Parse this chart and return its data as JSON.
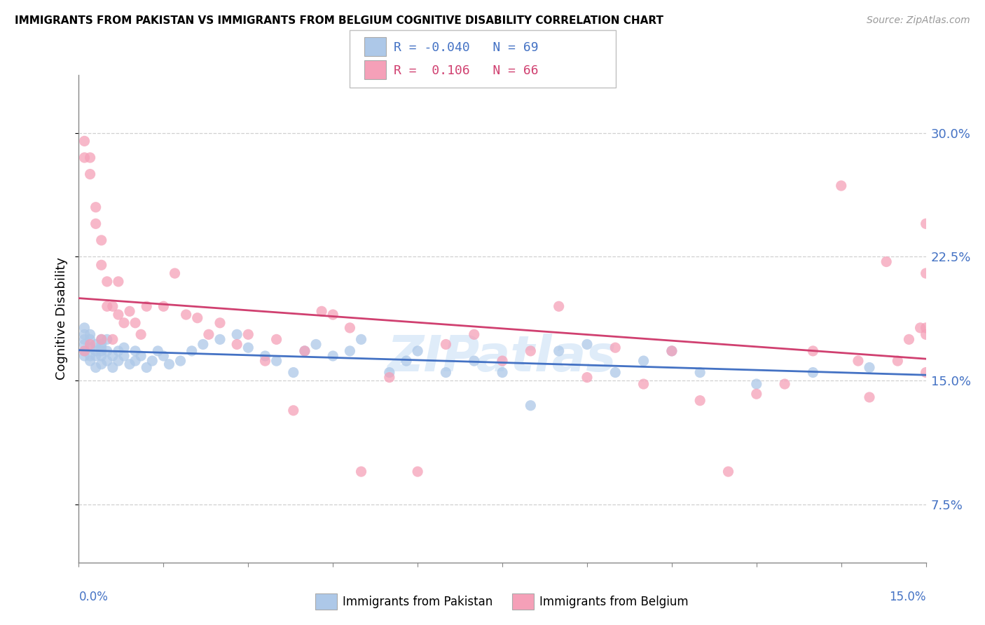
{
  "title": "IMMIGRANTS FROM PAKISTAN VS IMMIGRANTS FROM BELGIUM COGNITIVE DISABILITY CORRELATION CHART",
  "source": "Source: ZipAtlas.com",
  "xmin": 0.0,
  "xmax": 0.15,
  "ymin": 0.04,
  "ymax": 0.335,
  "ylabel": "Cognitive Disability",
  "legend_label1": "Immigrants from Pakistan",
  "legend_label2": "Immigrants from Belgium",
  "R1": -0.04,
  "N1": 69,
  "R2": 0.106,
  "N2": 66,
  "color1": "#adc8e8",
  "color2": "#f5a0b8",
  "trendline_color1": "#4472c4",
  "trendline_color2": "#d04070",
  "background_color": "#ffffff",
  "grid_color": "#d0d0d0",
  "axis_color": "#888888",
  "label_color": "#4472c4",
  "ytick_vals": [
    0.075,
    0.15,
    0.225,
    0.3
  ],
  "ytick_labels": [
    "7.5%",
    "15.0%",
    "22.5%",
    "30.0%"
  ],
  "scatter1_x": [
    0.001,
    0.001,
    0.001,
    0.001,
    0.001,
    0.001,
    0.002,
    0.002,
    0.002,
    0.002,
    0.002,
    0.003,
    0.003,
    0.003,
    0.003,
    0.004,
    0.004,
    0.004,
    0.004,
    0.004,
    0.004,
    0.005,
    0.005,
    0.005,
    0.006,
    0.006,
    0.007,
    0.007,
    0.008,
    0.008,
    0.009,
    0.01,
    0.01,
    0.011,
    0.012,
    0.013,
    0.014,
    0.015,
    0.016,
    0.018,
    0.02,
    0.022,
    0.025,
    0.028,
    0.03,
    0.033,
    0.035,
    0.038,
    0.04,
    0.042,
    0.045,
    0.048,
    0.05,
    0.055,
    0.058,
    0.06,
    0.065,
    0.07,
    0.075,
    0.08,
    0.085,
    0.09,
    0.095,
    0.1,
    0.105,
    0.11,
    0.12,
    0.13,
    0.14
  ],
  "scatter1_y": [
    0.172,
    0.175,
    0.178,
    0.182,
    0.168,
    0.165,
    0.17,
    0.175,
    0.165,
    0.178,
    0.162,
    0.168,
    0.172,
    0.165,
    0.158,
    0.17,
    0.175,
    0.165,
    0.16,
    0.168,
    0.172,
    0.162,
    0.168,
    0.175,
    0.165,
    0.158,
    0.168,
    0.162,
    0.165,
    0.17,
    0.16,
    0.162,
    0.168,
    0.165,
    0.158,
    0.162,
    0.168,
    0.165,
    0.16,
    0.162,
    0.168,
    0.172,
    0.175,
    0.178,
    0.17,
    0.165,
    0.162,
    0.155,
    0.168,
    0.172,
    0.165,
    0.168,
    0.175,
    0.155,
    0.162,
    0.168,
    0.155,
    0.162,
    0.155,
    0.135,
    0.168,
    0.172,
    0.155,
    0.162,
    0.168,
    0.155,
    0.148,
    0.155,
    0.158
  ],
  "scatter2_x": [
    0.001,
    0.001,
    0.001,
    0.002,
    0.002,
    0.002,
    0.003,
    0.003,
    0.004,
    0.004,
    0.004,
    0.005,
    0.005,
    0.006,
    0.006,
    0.007,
    0.007,
    0.008,
    0.009,
    0.01,
    0.011,
    0.012,
    0.015,
    0.017,
    0.019,
    0.021,
    0.023,
    0.025,
    0.028,
    0.03,
    0.033,
    0.035,
    0.038,
    0.04,
    0.043,
    0.045,
    0.048,
    0.05,
    0.055,
    0.06,
    0.065,
    0.07,
    0.075,
    0.08,
    0.085,
    0.09,
    0.095,
    0.1,
    0.105,
    0.11,
    0.115,
    0.12,
    0.125,
    0.13,
    0.135,
    0.138,
    0.14,
    0.143,
    0.145,
    0.147,
    0.149,
    0.15,
    0.15,
    0.15,
    0.15,
    0.15
  ],
  "scatter2_y": [
    0.295,
    0.285,
    0.168,
    0.285,
    0.275,
    0.172,
    0.255,
    0.245,
    0.235,
    0.22,
    0.175,
    0.21,
    0.195,
    0.195,
    0.175,
    0.21,
    0.19,
    0.185,
    0.192,
    0.185,
    0.178,
    0.195,
    0.195,
    0.215,
    0.19,
    0.188,
    0.178,
    0.185,
    0.172,
    0.178,
    0.162,
    0.175,
    0.132,
    0.168,
    0.192,
    0.19,
    0.182,
    0.095,
    0.152,
    0.095,
    0.172,
    0.178,
    0.162,
    0.168,
    0.195,
    0.152,
    0.17,
    0.148,
    0.168,
    0.138,
    0.095,
    0.142,
    0.148,
    0.168,
    0.268,
    0.162,
    0.14,
    0.222,
    0.162,
    0.175,
    0.182,
    0.182,
    0.215,
    0.245,
    0.178,
    0.155
  ]
}
